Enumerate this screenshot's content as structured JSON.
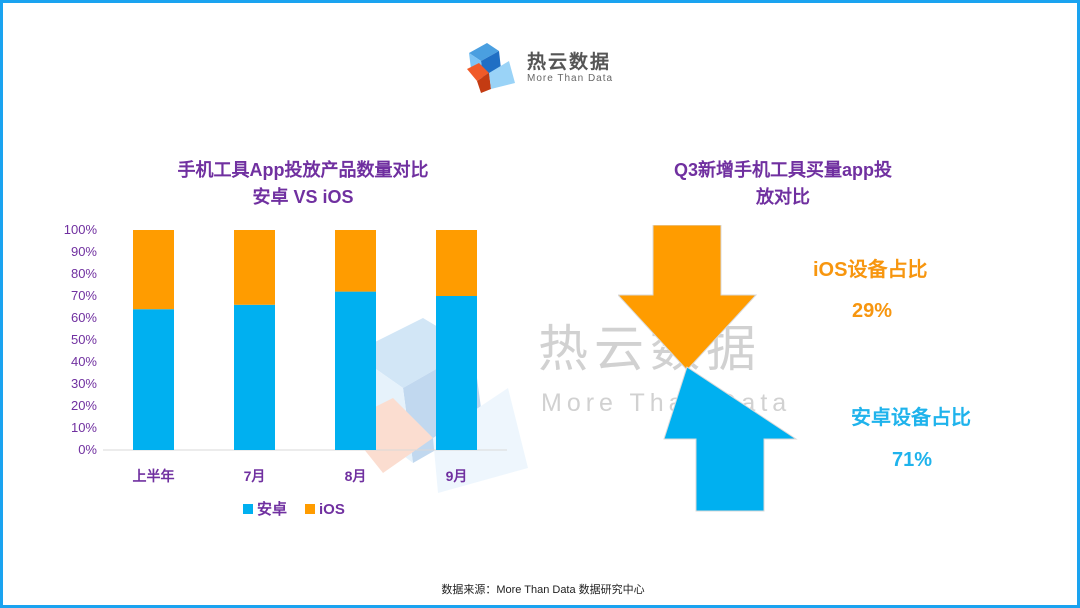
{
  "logo": {
    "name": "热云数据",
    "tagline": "More Than Data"
  },
  "watermark": {
    "name": "热云数据",
    "tagline": "More Than Data"
  },
  "chart_data": {
    "type": "bar",
    "stacked": true,
    "title": "手机工具App投放产品数量对比",
    "subtitle": "安卓 VS iOS",
    "categories": [
      "上半年",
      "7月",
      "8月",
      "9月"
    ],
    "series": [
      {
        "name": "安卓",
        "color": "#00b0f0",
        "values": [
          64,
          66,
          72,
          70
        ]
      },
      {
        "name": "iOS",
        "color": "#ff9c00",
        "values": [
          36,
          34,
          28,
          30
        ]
      }
    ],
    "yticks": [
      "0%",
      "10%",
      "20%",
      "30%",
      "40%",
      "50%",
      "60%",
      "70%",
      "80%",
      "90%",
      "100%"
    ],
    "ylim": [
      0,
      100
    ],
    "legend": "bottom"
  },
  "comparison": {
    "title_line1": "Q3新增手机工具买量app投",
    "title_line2": "放对比",
    "ios_label": "iOS设备占比",
    "ios_value": "29%",
    "android_label": "安卓设备占比",
    "android_value": "71%",
    "ios_color": "#f7960f",
    "android_color": "#1fb3ec"
  },
  "footer": {
    "source": "数据来源：More Than Data 数据研究中心"
  }
}
